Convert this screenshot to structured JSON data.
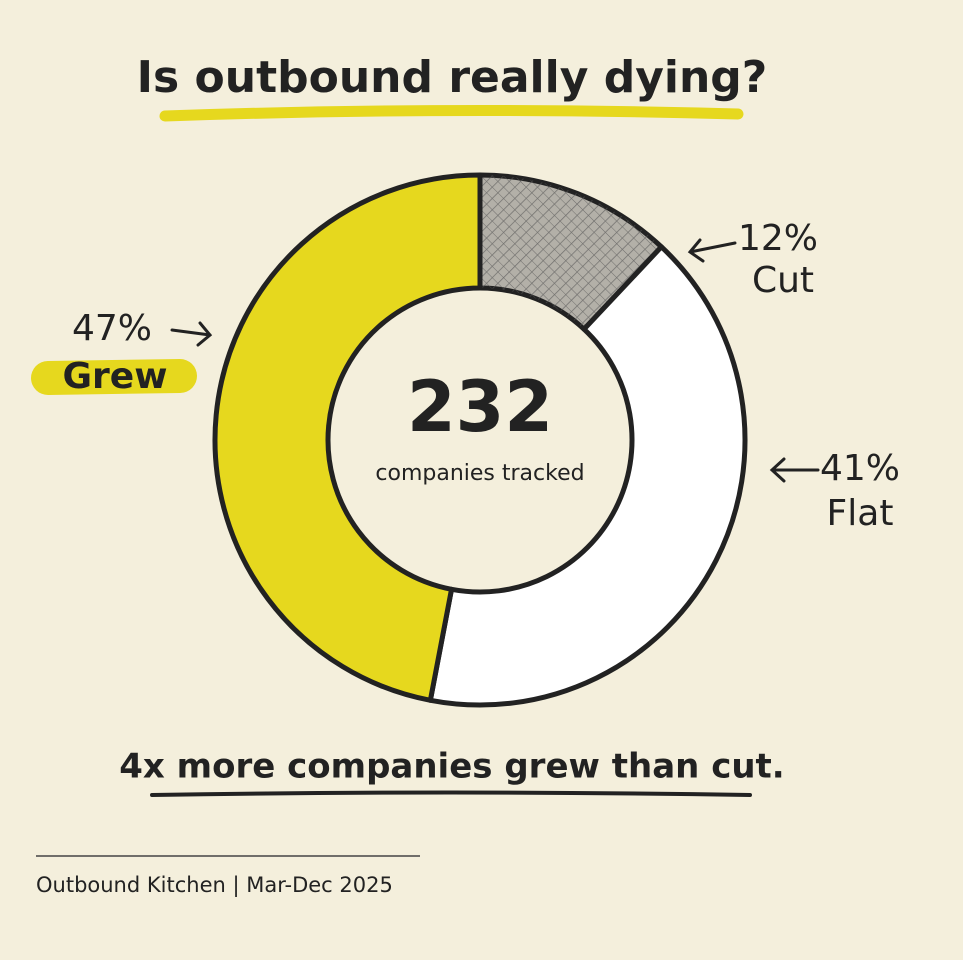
{
  "chart_data": {
    "type": "donut",
    "title": "Is outbound really dying?",
    "categories": [
      "Cut",
      "Flat",
      "Grew"
    ],
    "values": [
      12,
      41,
      47
    ],
    "value_labels": [
      "12%",
      "41%",
      "47%"
    ],
    "colors": [
      "#b3b0a8",
      "#ffffff",
      "#e6d81e"
    ],
    "center_value": 232,
    "center_label": "companies tracked",
    "caption": "4x more companies grew than cut.",
    "source": "Outbound Kitchen | Mar-Dec 2025"
  }
}
